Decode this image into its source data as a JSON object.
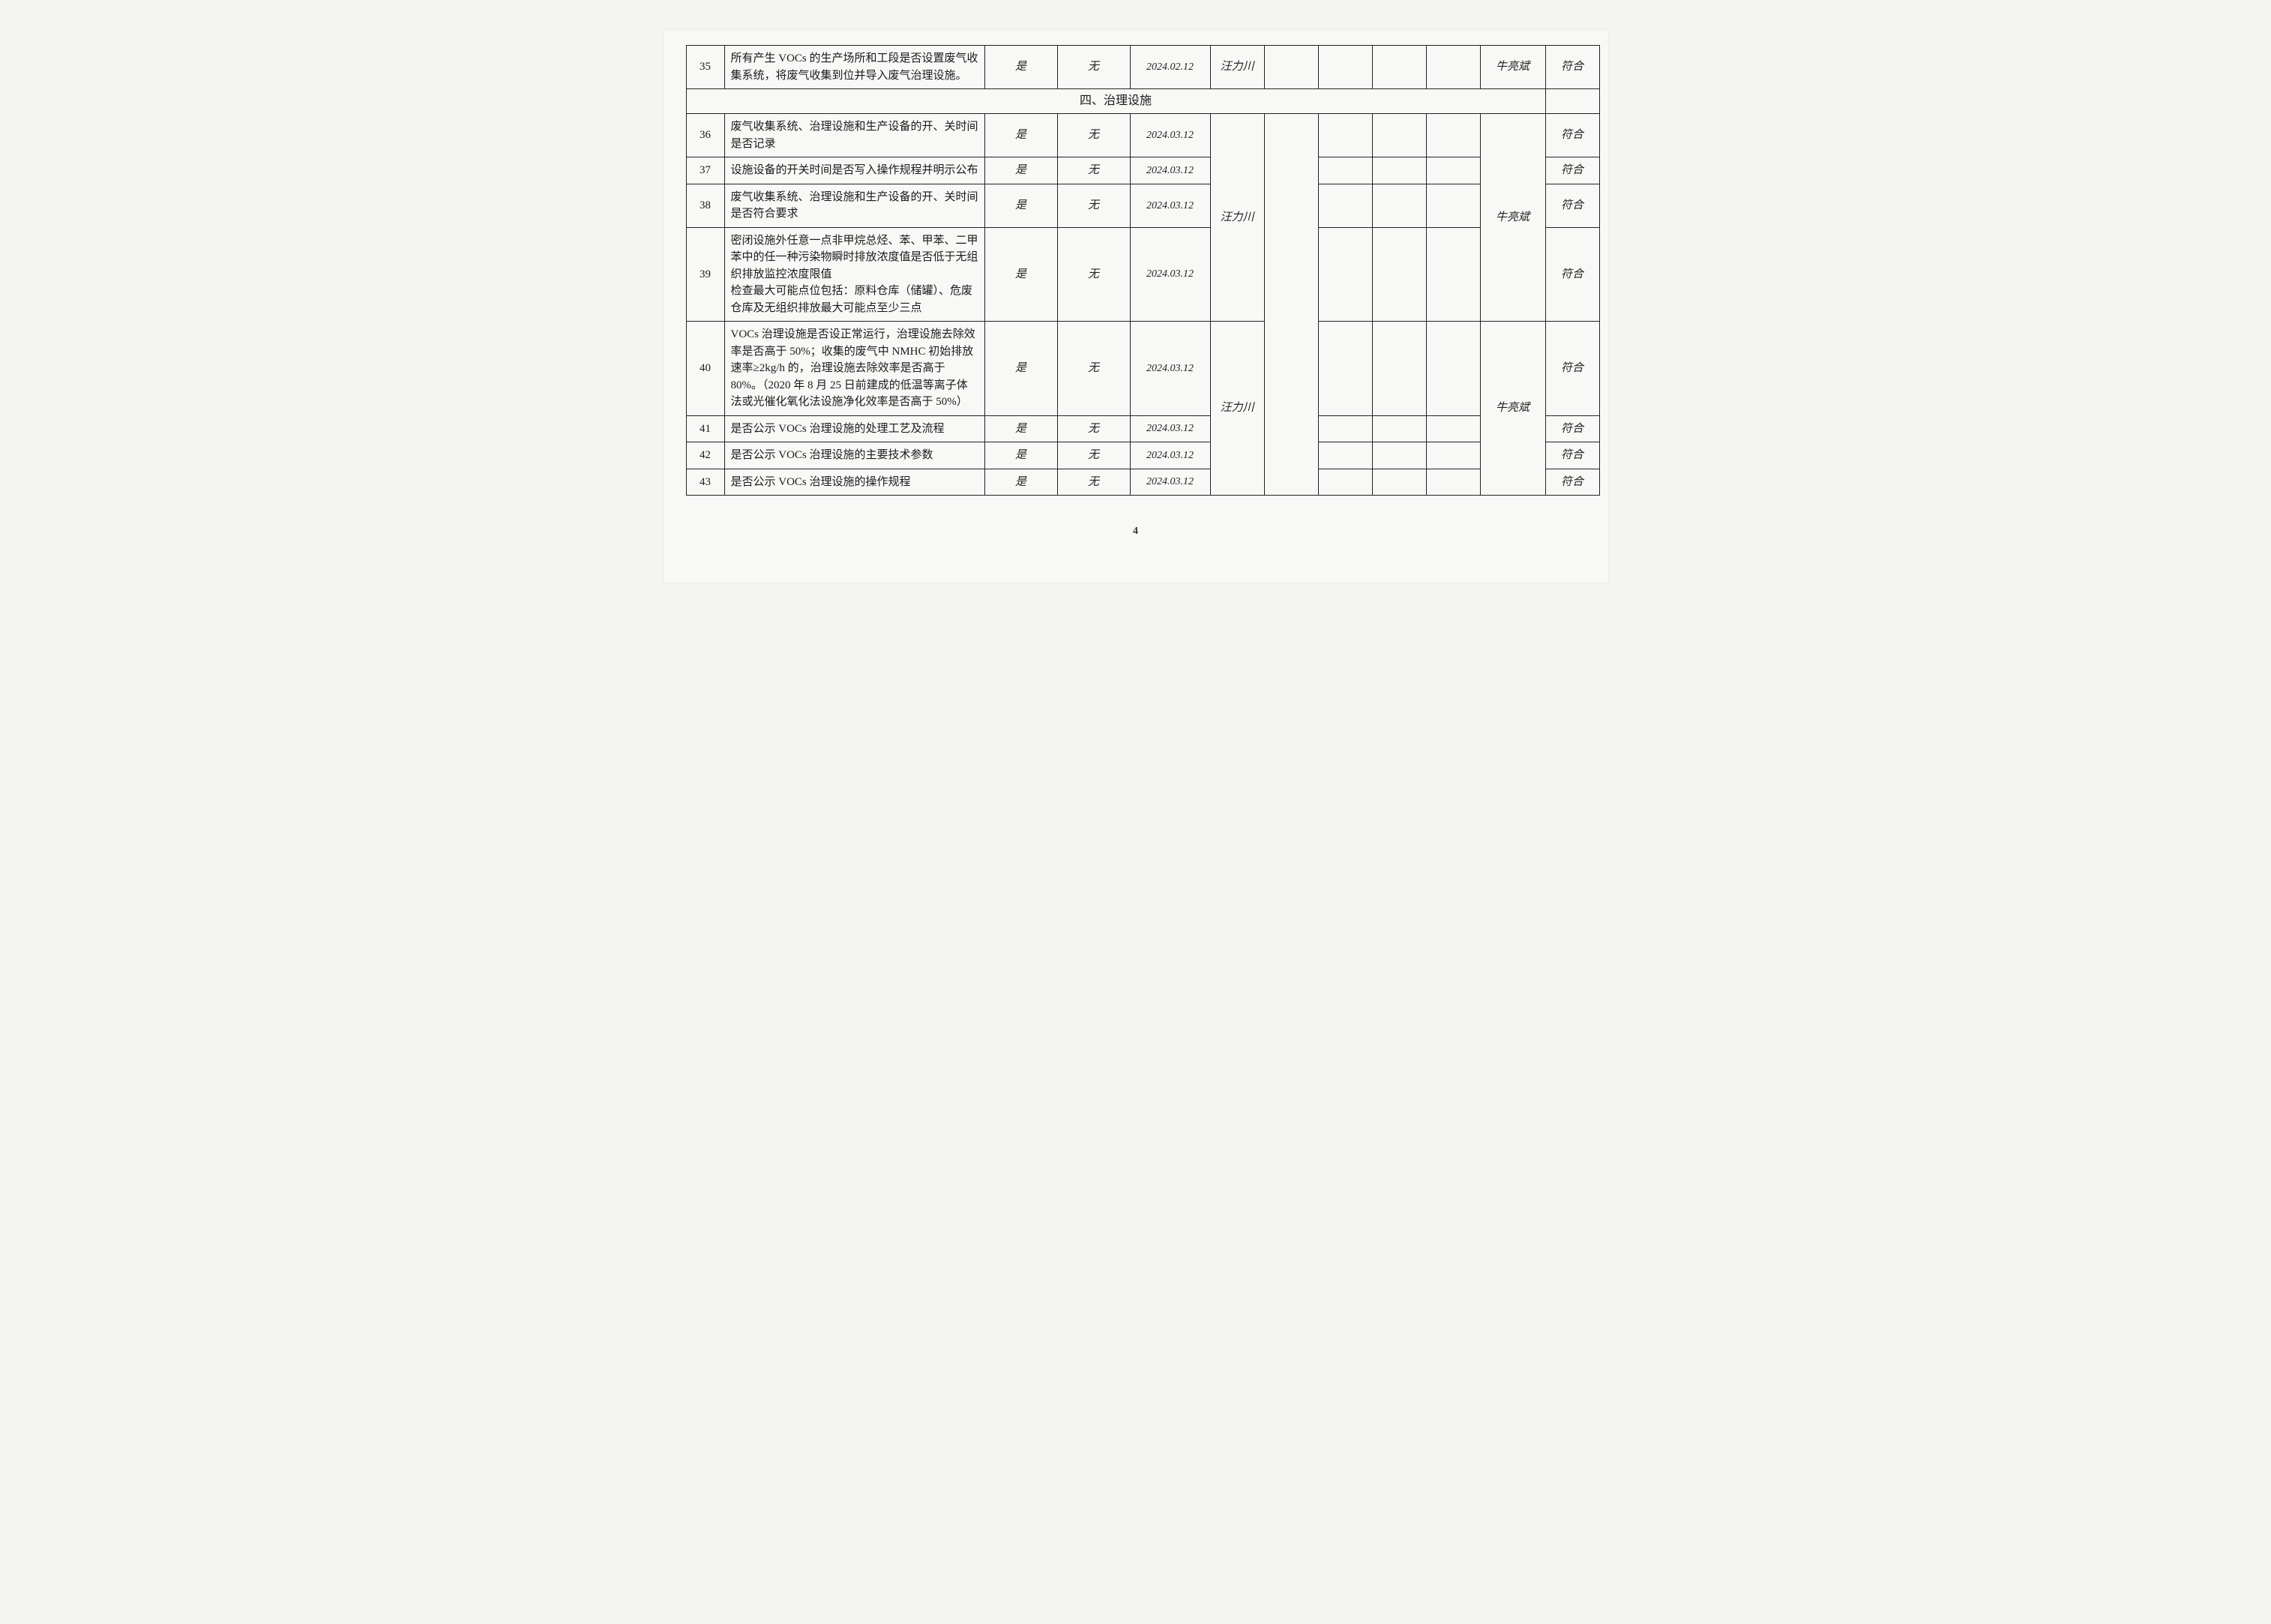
{
  "page_number": "4",
  "section_header": "四、治理设施",
  "rows": [
    {
      "num": "35",
      "desc": "所有产生 VOCs 的生产场所和工段是否设置废气收集系统，将废气收集到位并导入废气治理设施。",
      "col3": "是",
      "col4": "无",
      "col5": "2024.02.12",
      "col6": "汪力川",
      "col11": "牛亮斌",
      "col12": "符合"
    },
    {
      "num": "36",
      "desc": "废气收集系统、治理设施和生产设备的开、关时间是否记录",
      "col3": "是",
      "col4": "无",
      "col5": "2024.03.12",
      "col12": "符合"
    },
    {
      "num": "37",
      "desc": "设施设备的开关时间是否写入操作规程并明示公布",
      "col3": "是",
      "col4": "无",
      "col5": "2024.03.12",
      "col12": "符合"
    },
    {
      "num": "38",
      "desc": "废气收集系统、治理设施和生产设备的开、关时间是否符合要求",
      "col3": "是",
      "col4": "无",
      "col5": "2024.03.12",
      "col12": "符合"
    },
    {
      "num": "39",
      "desc": "密闭设施外任意一点非甲烷总烃、苯、甲苯、二甲苯中的任一种污染物瞬时排放浓度值是否低于无组织排放监控浓度限值\n检查最大可能点位包括：原料仓库（储罐）、危废仓库及无组织排放最大可能点至少三点",
      "col3": "是",
      "col4": "无",
      "col5": "2024.03.12",
      "col12": "符合"
    },
    {
      "num": "40",
      "desc": "VOCs 治理设施是否设正常运行，治理设施去除效率是否高于 50%；收集的废气中 NMHC 初始排放速率≥2kg/h 的，治理设施去除效率是否高于 80%。（2020 年 8 月 25 日前建成的低温等离子体法或光催化氧化法设施净化效率是否高于 50%）",
      "col3": "是",
      "col4": "无",
      "col5": "2024.03.12",
      "col12": "符合"
    },
    {
      "num": "41",
      "desc": "是否公示 VOCs 治理设施的处理工艺及流程",
      "col3": "是",
      "col4": "无",
      "col5": "2024.03.12",
      "col12": "符合"
    },
    {
      "num": "42",
      "desc": "是否公示 VOCs 治理设施的主要技术参数",
      "col3": "是",
      "col4": "无",
      "col5": "2024.03.12",
      "col12": "符合"
    },
    {
      "num": "43",
      "desc": "是否公示 VOCs 治理设施的操作规程",
      "col3": "是",
      "col4": "无",
      "col5": "2024.03.12",
      "col12": "符合"
    }
  ],
  "merged": {
    "col6_36_39": "汪力川",
    "col6_40": "汪力川",
    "col11_36_39": "牛亮斌",
    "col11_40": "牛亮斌"
  }
}
